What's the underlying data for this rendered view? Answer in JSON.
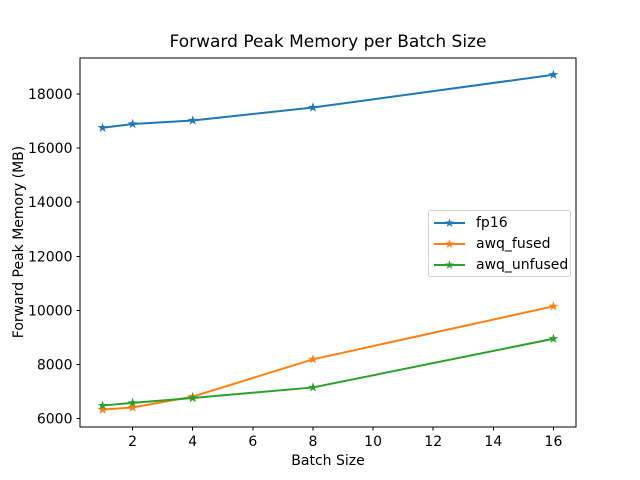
{
  "chart_data": {
    "type": "line",
    "title": "Forward Peak Memory per Batch Size",
    "xlabel": "Batch Size",
    "ylabel": "Forward Peak Memory (MB)",
    "x": [
      1,
      2,
      4,
      8,
      16
    ],
    "series": [
      {
        "name": "fp16",
        "color": "#1f77b4",
        "values": [
          16750,
          16890,
          17020,
          17500,
          18710
        ]
      },
      {
        "name": "awq_fused",
        "color": "#ff7f0e",
        "values": [
          6330,
          6410,
          6810,
          8190,
          10150
        ]
      },
      {
        "name": "awq_unfused",
        "color": "#2ca02c",
        "values": [
          6480,
          6580,
          6760,
          7150,
          8950
        ]
      }
    ],
    "marker": "star",
    "xlim": [
      0.25,
      16.75
    ],
    "ylim": [
      5680,
      19330
    ],
    "xticks": [
      2,
      4,
      6,
      8,
      10,
      12,
      14,
      16
    ],
    "yticks": [
      6000,
      8000,
      10000,
      12000,
      14000,
      16000,
      18000
    ],
    "grid": false,
    "legend_position": "center right",
    "axis_color": "#000000",
    "background_color": "#ffffff"
  }
}
